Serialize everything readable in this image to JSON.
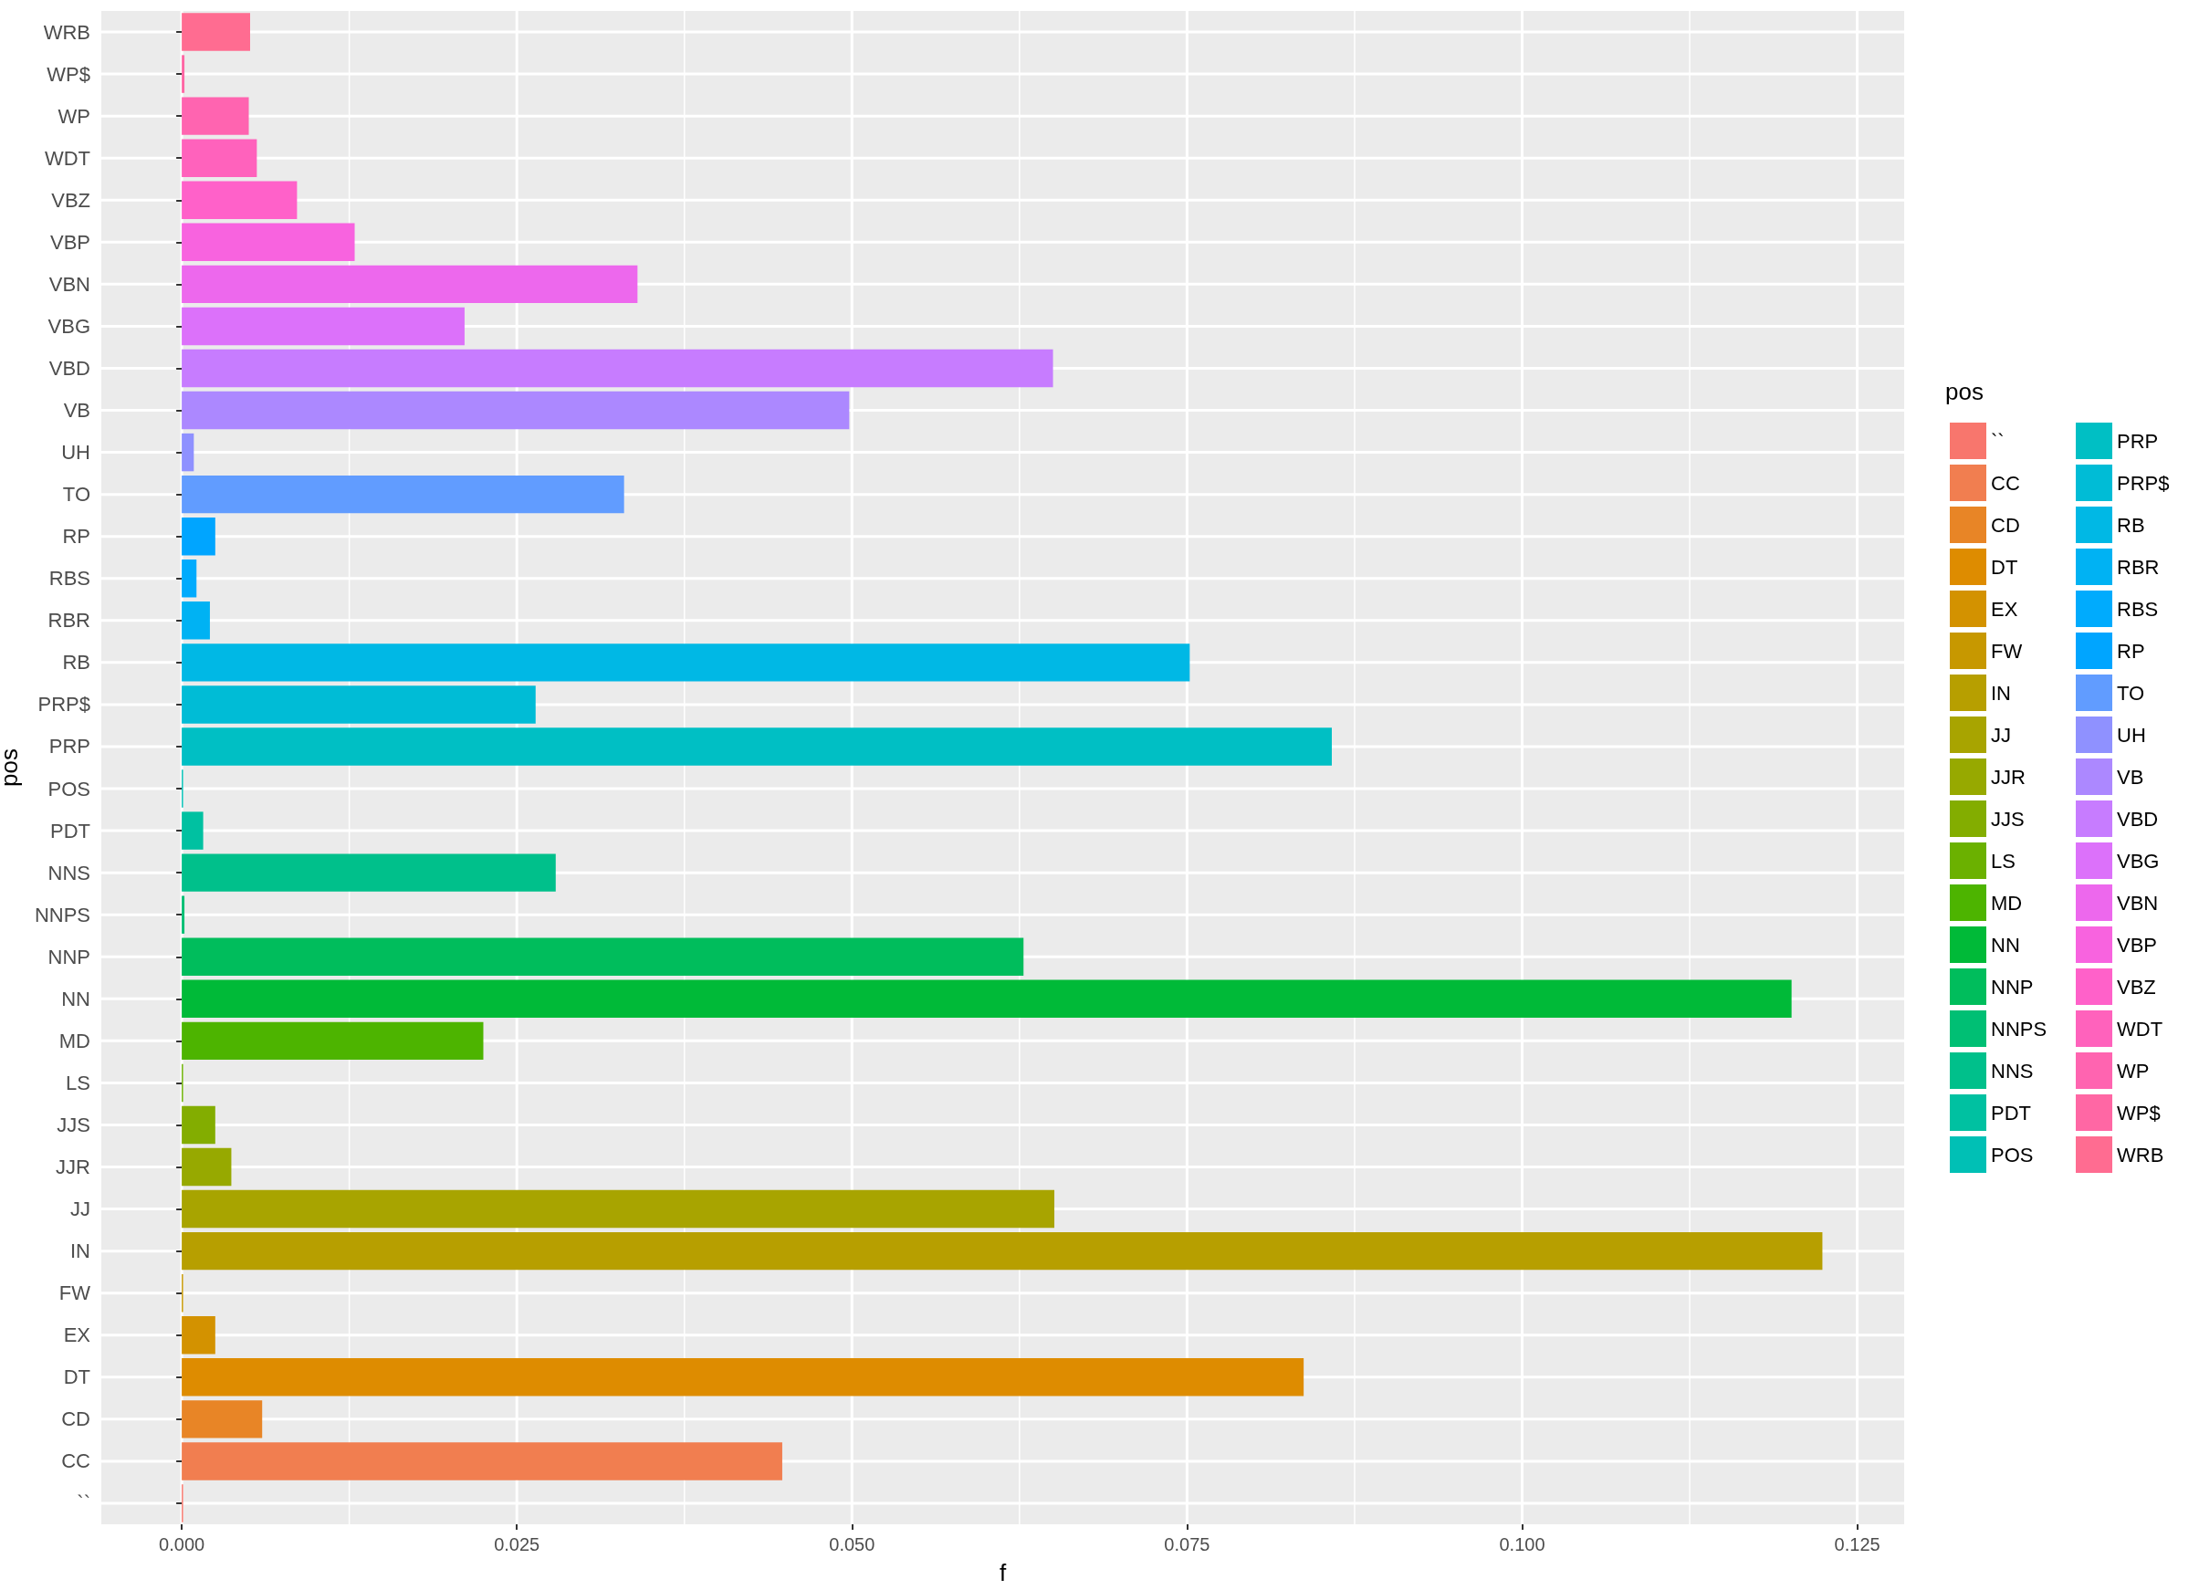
{
  "chart_data": {
    "type": "bar",
    "orientation": "horizontal",
    "xlabel": "f",
    "ylabel": "pos",
    "legend_title": "pos",
    "legend": "right",
    "grid": true,
    "categories": [
      "WRB",
      "WP$",
      "WP",
      "WDT",
      "VBZ",
      "VBP",
      "VBN",
      "VBG",
      "VBD",
      "VB",
      "UH",
      "TO",
      "RP",
      "RBS",
      "RBR",
      "RB",
      "PRP$",
      "PRP",
      "POS",
      "PDT",
      "NNS",
      "NNPS",
      "NNP",
      "NN",
      "MD",
      "LS",
      "JJS",
      "JJR",
      "JJ",
      "IN",
      "FW",
      "EX",
      "DT",
      "CD",
      "CC",
      "``"
    ],
    "series": [
      {
        "name": "``",
        "color": "#F8766D",
        "values": [
          null,
          null,
          null,
          null,
          null,
          null,
          null,
          null,
          null,
          null,
          null,
          null,
          null,
          null,
          null,
          null,
          null,
          null,
          null,
          null,
          null,
          null,
          null,
          null,
          null,
          null,
          null,
          null,
          null,
          null,
          null,
          null,
          null,
          null,
          null,
          0.0001
        ]
      },
      {
        "name": "CC",
        "color": "#F17E50",
        "values": [
          null,
          null,
          null,
          null,
          null,
          null,
          null,
          null,
          null,
          null,
          null,
          null,
          null,
          null,
          null,
          null,
          null,
          null,
          null,
          null,
          null,
          null,
          null,
          null,
          null,
          null,
          null,
          null,
          null,
          null,
          null,
          null,
          null,
          null,
          0.0448,
          null
        ]
      },
      {
        "name": "CD",
        "color": "#E88526",
        "values": [
          null,
          null,
          null,
          null,
          null,
          null,
          null,
          null,
          null,
          null,
          null,
          null,
          null,
          null,
          null,
          null,
          null,
          null,
          null,
          null,
          null,
          null,
          null,
          null,
          null,
          null,
          null,
          null,
          null,
          null,
          null,
          null,
          null,
          0.006,
          null,
          null
        ]
      },
      {
        "name": "DT",
        "color": "#DE8C00",
        "values": [
          null,
          null,
          null,
          null,
          null,
          null,
          null,
          null,
          null,
          null,
          null,
          null,
          null,
          null,
          null,
          null,
          null,
          null,
          null,
          null,
          null,
          null,
          null,
          null,
          null,
          null,
          null,
          null,
          null,
          null,
          null,
          null,
          0.0837,
          null,
          null,
          null
        ]
      },
      {
        "name": "EX",
        "color": "#D39200",
        "values": [
          null,
          null,
          null,
          null,
          null,
          null,
          null,
          null,
          null,
          null,
          null,
          null,
          null,
          null,
          null,
          null,
          null,
          null,
          null,
          null,
          null,
          null,
          null,
          null,
          null,
          null,
          null,
          null,
          null,
          null,
          null,
          0.0025,
          null,
          null,
          null,
          null
        ]
      },
      {
        "name": "FW",
        "color": "#C79800",
        "values": [
          null,
          null,
          null,
          null,
          null,
          null,
          null,
          null,
          null,
          null,
          null,
          null,
          null,
          null,
          null,
          null,
          null,
          null,
          null,
          null,
          null,
          null,
          null,
          null,
          null,
          null,
          null,
          null,
          null,
          null,
          0.0001,
          null,
          null,
          null,
          null,
          null
        ]
      },
      {
        "name": "IN",
        "color": "#B79F00",
        "values": [
          null,
          null,
          null,
          null,
          null,
          null,
          null,
          null,
          null,
          null,
          null,
          null,
          null,
          null,
          null,
          null,
          null,
          null,
          null,
          null,
          null,
          null,
          null,
          null,
          null,
          null,
          null,
          null,
          null,
          0.1224,
          null,
          null,
          null,
          null,
          null,
          null
        ]
      },
      {
        "name": "JJ",
        "color": "#A8A400",
        "values": [
          null,
          null,
          null,
          null,
          null,
          null,
          null,
          null,
          null,
          null,
          null,
          null,
          null,
          null,
          null,
          null,
          null,
          null,
          null,
          null,
          null,
          null,
          null,
          null,
          null,
          null,
          null,
          null,
          0.0651,
          null,
          null,
          null,
          null,
          null,
          null,
          null
        ]
      },
      {
        "name": "JJR",
        "color": "#97A900",
        "values": [
          null,
          null,
          null,
          null,
          null,
          null,
          null,
          null,
          null,
          null,
          null,
          null,
          null,
          null,
          null,
          null,
          null,
          null,
          null,
          null,
          null,
          null,
          null,
          null,
          null,
          null,
          null,
          0.0037,
          null,
          null,
          null,
          null,
          null,
          null,
          null,
          null
        ]
      },
      {
        "name": "JJS",
        "color": "#83AD00",
        "values": [
          null,
          null,
          null,
          null,
          null,
          null,
          null,
          null,
          null,
          null,
          null,
          null,
          null,
          null,
          null,
          null,
          null,
          null,
          null,
          null,
          null,
          null,
          null,
          null,
          null,
          null,
          0.0025,
          null,
          null,
          null,
          null,
          null,
          null,
          null,
          null,
          null
        ]
      },
      {
        "name": "LS",
        "color": "#6BB100",
        "values": [
          null,
          null,
          null,
          null,
          null,
          null,
          null,
          null,
          null,
          null,
          null,
          null,
          null,
          null,
          null,
          null,
          null,
          null,
          null,
          null,
          null,
          null,
          null,
          null,
          null,
          0.0001,
          null,
          null,
          null,
          null,
          null,
          null,
          null,
          null,
          null,
          null
        ]
      },
      {
        "name": "MD",
        "color": "#4DB400",
        "values": [
          null,
          null,
          null,
          null,
          null,
          null,
          null,
          null,
          null,
          null,
          null,
          null,
          null,
          null,
          null,
          null,
          null,
          null,
          null,
          null,
          null,
          null,
          null,
          null,
          0.0225,
          null,
          null,
          null,
          null,
          null,
          null,
          null,
          null,
          null,
          null,
          null
        ]
      },
      {
        "name": "NN",
        "color": "#00BA38",
        "values": [
          null,
          null,
          null,
          null,
          null,
          null,
          null,
          null,
          null,
          null,
          null,
          null,
          null,
          null,
          null,
          null,
          null,
          null,
          null,
          null,
          null,
          null,
          null,
          0.1201,
          null,
          null,
          null,
          null,
          null,
          null,
          null,
          null,
          null,
          null,
          null,
          null
        ]
      },
      {
        "name": "NNP",
        "color": "#00BD5C",
        "values": [
          null,
          null,
          null,
          null,
          null,
          null,
          null,
          null,
          null,
          null,
          null,
          null,
          null,
          null,
          null,
          null,
          null,
          null,
          null,
          null,
          null,
          null,
          0.0628,
          null,
          null,
          null,
          null,
          null,
          null,
          null,
          null,
          null,
          null,
          null,
          null,
          null
        ]
      },
      {
        "name": "NNPS",
        "color": "#00BF74",
        "values": [
          null,
          null,
          null,
          null,
          null,
          null,
          null,
          null,
          null,
          null,
          null,
          null,
          null,
          null,
          null,
          null,
          null,
          null,
          null,
          null,
          null,
          0.0002,
          null,
          null,
          null,
          null,
          null,
          null,
          null,
          null,
          null,
          null,
          null,
          null,
          null,
          null
        ]
      },
      {
        "name": "NNS",
        "color": "#00C08B",
        "values": [
          null,
          null,
          null,
          null,
          null,
          null,
          null,
          null,
          null,
          null,
          null,
          null,
          null,
          null,
          null,
          null,
          null,
          null,
          null,
          null,
          0.0279,
          null,
          null,
          null,
          null,
          null,
          null,
          null,
          null,
          null,
          null,
          null,
          null,
          null,
          null,
          null
        ]
      },
      {
        "name": "PDT",
        "color": "#00C1A1",
        "values": [
          null,
          null,
          null,
          null,
          null,
          null,
          null,
          null,
          null,
          null,
          null,
          null,
          null,
          null,
          null,
          null,
          null,
          null,
          null,
          0.0016,
          null,
          null,
          null,
          null,
          null,
          null,
          null,
          null,
          null,
          null,
          null,
          null,
          null,
          null,
          null,
          null
        ]
      },
      {
        "name": "POS",
        "color": "#00C0B5",
        "values": [
          null,
          null,
          null,
          null,
          null,
          null,
          null,
          null,
          null,
          null,
          null,
          null,
          null,
          null,
          null,
          null,
          null,
          null,
          0.0001,
          null,
          null,
          null,
          null,
          null,
          null,
          null,
          null,
          null,
          null,
          null,
          null,
          null,
          null,
          null,
          null,
          null
        ]
      },
      {
        "name": "PRP",
        "color": "#00BFC4",
        "values": [
          null,
          null,
          null,
          null,
          null,
          null,
          null,
          null,
          null,
          null,
          null,
          null,
          null,
          null,
          null,
          null,
          null,
          0.0858,
          null,
          null,
          null,
          null,
          null,
          null,
          null,
          null,
          null,
          null,
          null,
          null,
          null,
          null,
          null,
          null,
          null,
          null
        ]
      },
      {
        "name": "PRP$",
        "color": "#00BCD6",
        "values": [
          null,
          null,
          null,
          null,
          null,
          null,
          null,
          null,
          null,
          null,
          null,
          null,
          null,
          null,
          null,
          null,
          0.0264,
          null,
          null,
          null,
          null,
          null,
          null,
          null,
          null,
          null,
          null,
          null,
          null,
          null,
          null,
          null,
          null,
          null,
          null,
          null
        ]
      },
      {
        "name": "RB",
        "color": "#00B8E5",
        "values": [
          null,
          null,
          null,
          null,
          null,
          null,
          null,
          null,
          null,
          null,
          null,
          null,
          null,
          null,
          null,
          0.0752,
          null,
          null,
          null,
          null,
          null,
          null,
          null,
          null,
          null,
          null,
          null,
          null,
          null,
          null,
          null,
          null,
          null,
          null,
          null,
          null
        ]
      },
      {
        "name": "RBR",
        "color": "#00B2F3",
        "values": [
          null,
          null,
          null,
          null,
          null,
          null,
          null,
          null,
          null,
          null,
          null,
          null,
          null,
          null,
          0.0021,
          null,
          null,
          null,
          null,
          null,
          null,
          null,
          null,
          null,
          null,
          null,
          null,
          null,
          null,
          null,
          null,
          null,
          null,
          null,
          null,
          null
        ]
      },
      {
        "name": "RBS",
        "color": "#00ABFD",
        "values": [
          null,
          null,
          null,
          null,
          null,
          null,
          null,
          null,
          null,
          null,
          null,
          null,
          null,
          0.0011,
          null,
          null,
          null,
          null,
          null,
          null,
          null,
          null,
          null,
          null,
          null,
          null,
          null,
          null,
          null,
          null,
          null,
          null,
          null,
          null,
          null,
          null
        ]
      },
      {
        "name": "RP",
        "color": "#00A5FF",
        "values": [
          null,
          null,
          null,
          null,
          null,
          null,
          null,
          null,
          null,
          null,
          null,
          null,
          0.0025,
          null,
          null,
          null,
          null,
          null,
          null,
          null,
          null,
          null,
          null,
          null,
          null,
          null,
          null,
          null,
          null,
          null,
          null,
          null,
          null,
          null,
          null,
          null
        ]
      },
      {
        "name": "TO",
        "color": "#619CFF",
        "values": [
          null,
          null,
          null,
          null,
          null,
          null,
          null,
          null,
          null,
          null,
          null,
          0.033,
          null,
          null,
          null,
          null,
          null,
          null,
          null,
          null,
          null,
          null,
          null,
          null,
          null,
          null,
          null,
          null,
          null,
          null,
          null,
          null,
          null,
          null,
          null,
          null
        ]
      },
      {
        "name": "UH",
        "color": "#8F91FF",
        "values": [
          null,
          null,
          null,
          null,
          null,
          null,
          null,
          null,
          null,
          null,
          0.0009,
          null,
          null,
          null,
          null,
          null,
          null,
          null,
          null,
          null,
          null,
          null,
          null,
          null,
          null,
          null,
          null,
          null,
          null,
          null,
          null,
          null,
          null,
          null,
          null,
          null
        ]
      },
      {
        "name": "VB",
        "color": "#AC88FF",
        "values": [
          null,
          null,
          null,
          null,
          null,
          null,
          null,
          null,
          null,
          0.0498,
          null,
          null,
          null,
          null,
          null,
          null,
          null,
          null,
          null,
          null,
          null,
          null,
          null,
          null,
          null,
          null,
          null,
          null,
          null,
          null,
          null,
          null,
          null,
          null,
          null,
          null
        ]
      },
      {
        "name": "VBD",
        "color": "#C77CFF",
        "values": [
          null,
          null,
          null,
          null,
          null,
          null,
          null,
          null,
          0.065,
          null,
          null,
          null,
          null,
          null,
          null,
          null,
          null,
          null,
          null,
          null,
          null,
          null,
          null,
          null,
          null,
          null,
          null,
          null,
          null,
          null,
          null,
          null,
          null,
          null,
          null,
          null
        ]
      },
      {
        "name": "VBG",
        "color": "#DC71FA",
        "values": [
          null,
          null,
          null,
          null,
          null,
          null,
          null,
          0.0211,
          null,
          null,
          null,
          null,
          null,
          null,
          null,
          null,
          null,
          null,
          null,
          null,
          null,
          null,
          null,
          null,
          null,
          null,
          null,
          null,
          null,
          null,
          null,
          null,
          null,
          null,
          null,
          null
        ]
      },
      {
        "name": "VBN",
        "color": "#ED68ED",
        "values": [
          null,
          null,
          null,
          null,
          null,
          null,
          0.034,
          null,
          null,
          null,
          null,
          null,
          null,
          null,
          null,
          null,
          null,
          null,
          null,
          null,
          null,
          null,
          null,
          null,
          null,
          null,
          null,
          null,
          null,
          null,
          null,
          null,
          null,
          null,
          null,
          null
        ]
      },
      {
        "name": "VBP",
        "color": "#F863DF",
        "values": [
          null,
          null,
          null,
          null,
          null,
          0.0129,
          null,
          null,
          null,
          null,
          null,
          null,
          null,
          null,
          null,
          null,
          null,
          null,
          null,
          null,
          null,
          null,
          null,
          null,
          null,
          null,
          null,
          null,
          null,
          null,
          null,
          null,
          null,
          null,
          null,
          null
        ]
      },
      {
        "name": "VBZ",
        "color": "#FF61C9",
        "values": [
          null,
          null,
          null,
          null,
          0.0086,
          null,
          null,
          null,
          null,
          null,
          null,
          null,
          null,
          null,
          null,
          null,
          null,
          null,
          null,
          null,
          null,
          null,
          null,
          null,
          null,
          null,
          null,
          null,
          null,
          null,
          null,
          null,
          null,
          null,
          null,
          null
        ]
      },
      {
        "name": "WDT",
        "color": "#FF62BC",
        "values": [
          null,
          null,
          null,
          0.0056,
          null,
          null,
          null,
          null,
          null,
          null,
          null,
          null,
          null,
          null,
          null,
          null,
          null,
          null,
          null,
          null,
          null,
          null,
          null,
          null,
          null,
          null,
          null,
          null,
          null,
          null,
          null,
          null,
          null,
          null,
          null,
          null
        ]
      },
      {
        "name": "WP",
        "color": "#FF64B0",
        "values": [
          null,
          null,
          0.005,
          null,
          null,
          null,
          null,
          null,
          null,
          null,
          null,
          null,
          null,
          null,
          null,
          null,
          null,
          null,
          null,
          null,
          null,
          null,
          null,
          null,
          null,
          null,
          null,
          null,
          null,
          null,
          null,
          null,
          null,
          null,
          null,
          null
        ]
      },
      {
        "name": "WP$",
        "color": "#FF67A4",
        "values": [
          null,
          0.0002,
          null,
          null,
          null,
          null,
          null,
          null,
          null,
          null,
          null,
          null,
          null,
          null,
          null,
          null,
          null,
          null,
          null,
          null,
          null,
          null,
          null,
          null,
          null,
          null,
          null,
          null,
          null,
          null,
          null,
          null,
          null,
          null,
          null,
          null
        ]
      },
      {
        "name": "WRB",
        "color": "#FF6C91",
        "values": [
          0.0051,
          null,
          null,
          null,
          null,
          null,
          null,
          null,
          null,
          null,
          null,
          null,
          null,
          null,
          null,
          null,
          null,
          null,
          null,
          null,
          null,
          null,
          null,
          null,
          null,
          null,
          null,
          null,
          null,
          null,
          null,
          null,
          null,
          null,
          null,
          null
        ]
      }
    ],
    "xlim": [
      -0.006,
      0.1285
    ],
    "xticks": [
      {
        "value": 0,
        "label": "0.000"
      },
      {
        "value": 0.025,
        "label": "0.025"
      },
      {
        "value": 0.05,
        "label": "0.050"
      },
      {
        "value": 0.075,
        "label": "0.075"
      },
      {
        "value": 0.1,
        "label": "0.100"
      },
      {
        "value": 0.125,
        "label": "0.125"
      }
    ]
  }
}
